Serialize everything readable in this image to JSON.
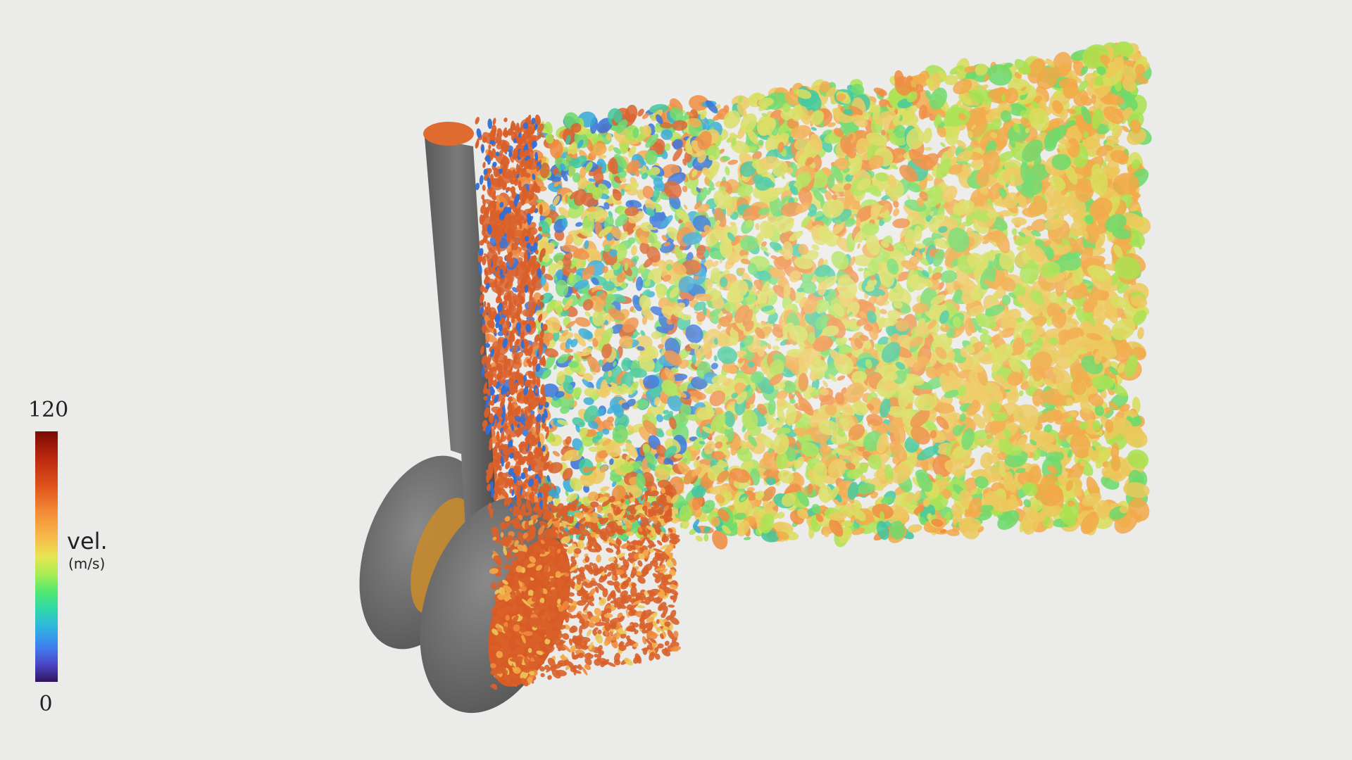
{
  "colorbar": {
    "max_label": "120",
    "min_label": "0",
    "quantity_label": "vel.",
    "unit_label": "(m/s)",
    "gradient_colors": [
      "#7a0b04",
      "#e0541b",
      "#f6b94a",
      "#e7e553",
      "#52e870",
      "#2fb6e0",
      "#4b46c6",
      "#2f155f"
    ]
  },
  "scene": {
    "subject": "landing-gear-wake-vortices",
    "background_color": "#ebebea",
    "gear_color": "#6e6e6e",
    "palette": [
      "#d9602a",
      "#ee8a3c",
      "#f2a948",
      "#ecc85a",
      "#d8dd5a",
      "#a9e24f",
      "#6cd96a",
      "#3cc79b",
      "#33a8d6",
      "#2f6fd8"
    ]
  }
}
